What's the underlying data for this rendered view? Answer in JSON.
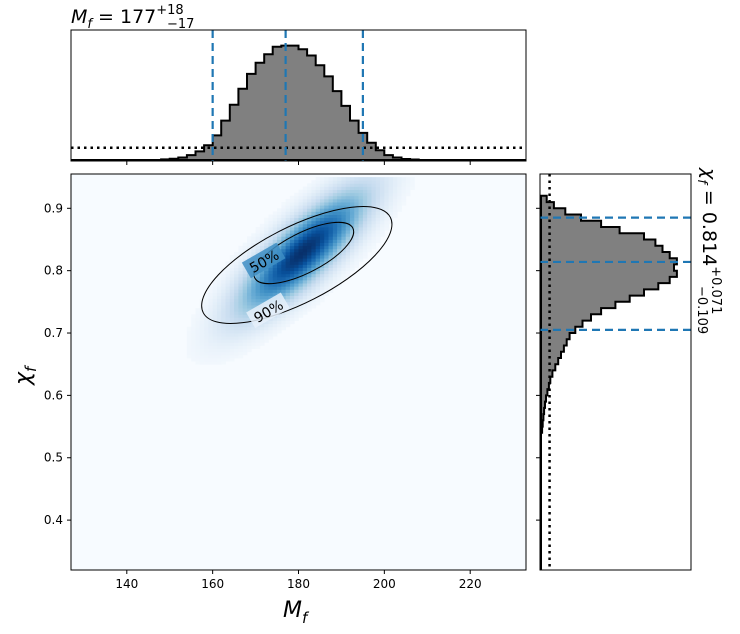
{
  "chart_data": {
    "type": "heatmap",
    "top_title": {
      "base": "M",
      "sub": "f",
      "eq": " = 177",
      "sup": "+18",
      "subv": "−17"
    },
    "right_title": {
      "base": "χ",
      "sub": "f",
      "eq": " = 0.814",
      "sup": "+0.071",
      "subv": "−0.109"
    },
    "xlabel": {
      "base": "M",
      "sub": "f"
    },
    "ylabel": {
      "base": "χ",
      "sub": "f"
    },
    "xlim": [
      127,
      233
    ],
    "ylim": [
      0.32,
      0.955
    ],
    "xticks": [
      140,
      160,
      180,
      200,
      220
    ],
    "xtick_labels": [
      "140",
      "160",
      "180",
      "200",
      "220"
    ],
    "yticks": [
      0.4,
      0.5,
      0.6,
      0.7,
      0.8,
      0.9
    ],
    "ytick_labels": [
      "0.4",
      "0.5",
      "0.6",
      "0.7",
      "0.8",
      "0.9"
    ],
    "mass_posterior": {
      "median": 177,
      "credible_interval": [
        160,
        195
      ],
      "histogram_bin_width": 2,
      "histogram_bin_starts": [
        148,
        150,
        152,
        154,
        156,
        158,
        160,
        162,
        164,
        166,
        168,
        170,
        172,
        174,
        176,
        178,
        180,
        182,
        184,
        186,
        188,
        190,
        192,
        194,
        196,
        198,
        200,
        202,
        204,
        206
      ],
      "histogram_heights": [
        0.005,
        0.01,
        0.02,
        0.04,
        0.07,
        0.12,
        0.2,
        0.32,
        0.45,
        0.58,
        0.7,
        0.79,
        0.86,
        0.92,
        0.93,
        0.93,
        0.9,
        0.85,
        0.77,
        0.68,
        0.56,
        0.44,
        0.32,
        0.22,
        0.14,
        0.08,
        0.04,
        0.02,
        0.008,
        0.004
      ],
      "prior_level": 0.1
    },
    "spin_posterior": {
      "median": 0.814,
      "credible_interval": [
        0.705,
        0.885
      ],
      "histogram_bin_width": 0.01,
      "histogram_bin_starts": [
        0.54,
        0.55,
        0.56,
        0.57,
        0.58,
        0.59,
        0.6,
        0.61,
        0.62,
        0.63,
        0.64,
        0.65,
        0.66,
        0.67,
        0.68,
        0.69,
        0.7,
        0.71,
        0.72,
        0.73,
        0.74,
        0.75,
        0.76,
        0.77,
        0.78,
        0.79,
        0.8,
        0.81,
        0.82,
        0.83,
        0.84,
        0.85,
        0.86,
        0.87,
        0.88,
        0.89,
        0.9,
        0.91
      ],
      "histogram_heights": [
        0.008,
        0.012,
        0.017,
        0.022,
        0.028,
        0.035,
        0.045,
        0.055,
        0.065,
        0.08,
        0.1,
        0.12,
        0.14,
        0.16,
        0.18,
        0.2,
        0.24,
        0.29,
        0.35,
        0.42,
        0.52,
        0.62,
        0.72,
        0.82,
        0.9,
        0.95,
        0.93,
        0.95,
        0.9,
        0.85,
        0.8,
        0.72,
        0.55,
        0.42,
        0.28,
        0.17,
        0.09,
        0.04
      ],
      "prior_level": 0.06
    },
    "joint_posterior": {
      "center": [
        181,
        0.83
      ],
      "sigma_mass": 9,
      "sigma_spin": 0.06,
      "correlation": 0.82,
      "colormap": "Blues"
    },
    "contours": [
      {
        "label": "50%",
        "label_at": [
          172,
          0.815
        ],
        "label_angle": -30
      },
      {
        "label": "90%",
        "label_at": [
          173,
          0.735
        ],
        "label_angle": -30
      }
    ],
    "colors": {
      "histogram_fill": "#808080",
      "quantile_lines": "#1f77b4",
      "prior": "#000000",
      "contours": "#000000"
    }
  }
}
